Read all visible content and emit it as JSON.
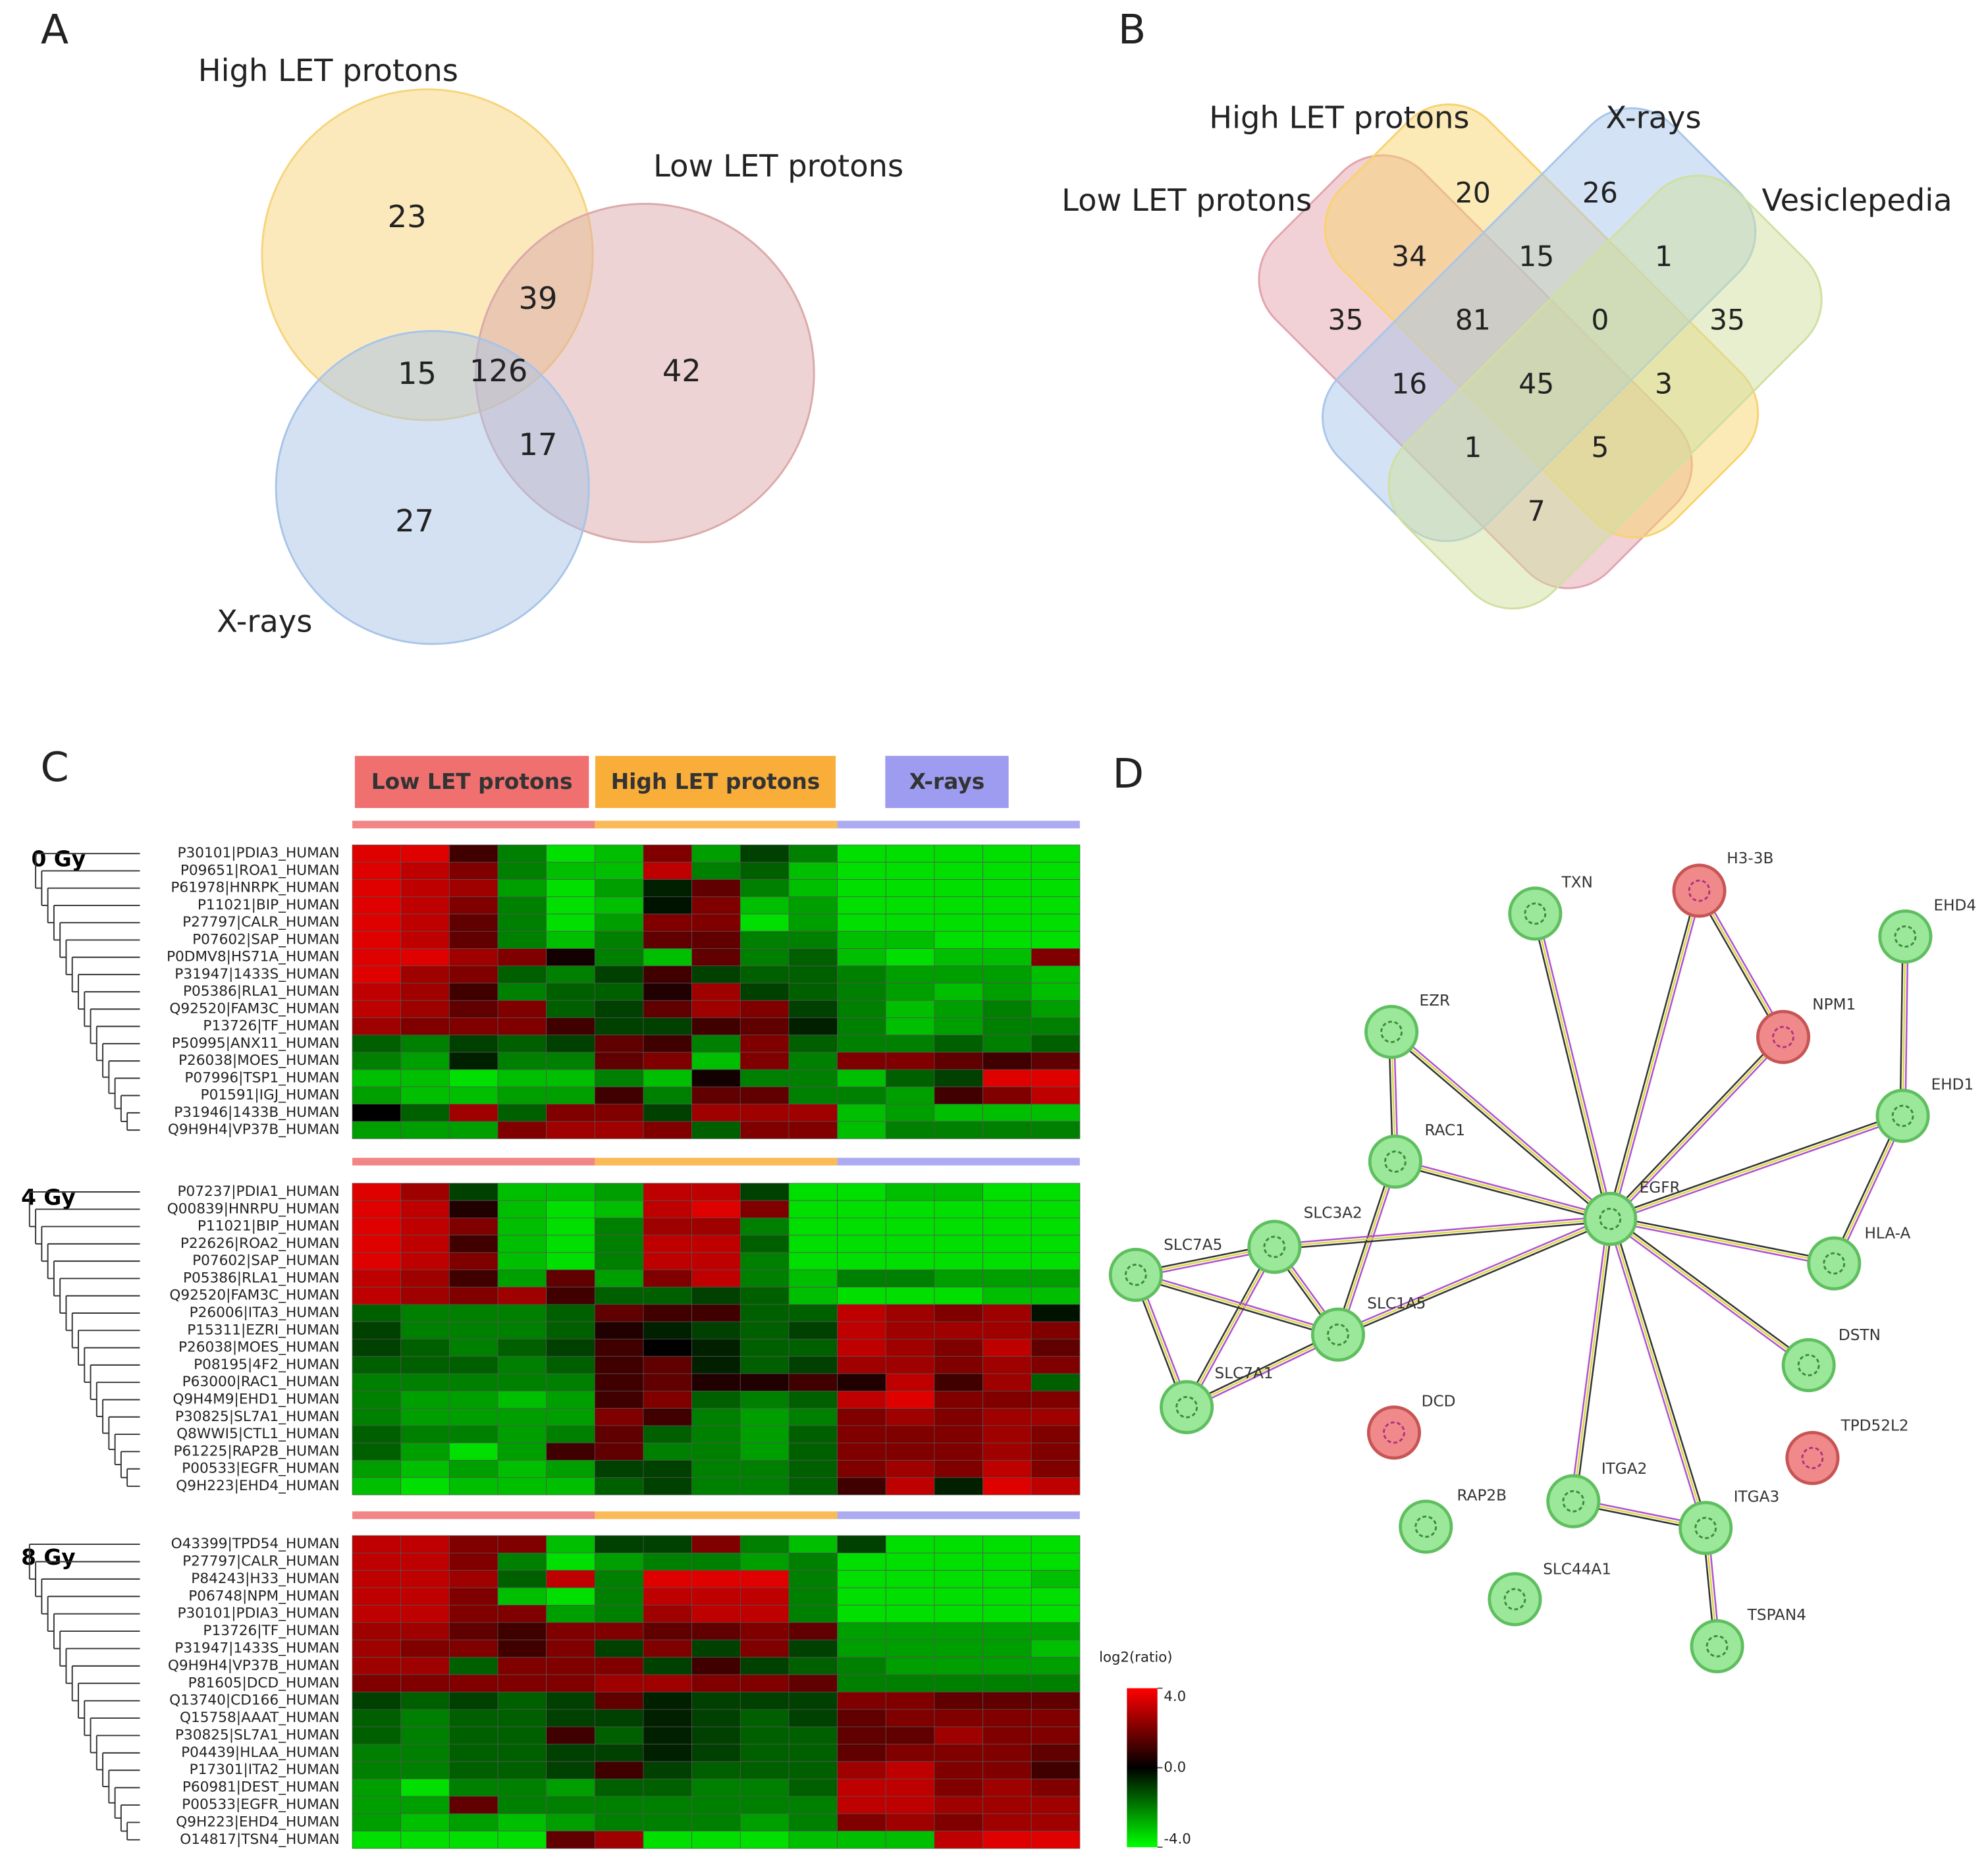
{
  "panel_a": {
    "letter": "A",
    "sets": [
      {
        "name": "High LET protons",
        "color": "#f7d47a"
      },
      {
        "name": "Low LET protons",
        "color": "#dca8a8"
      },
      {
        "name": "X-rays",
        "color": "#a8c4e8"
      }
    ],
    "regions": [
      23,
      39,
      15,
      126,
      42,
      17,
      27
    ]
  },
  "panel_b": {
    "letter": "B",
    "sets": [
      {
        "name": "Low LET protons",
        "color": "#e3a3ad"
      },
      {
        "name": "High LET protons",
        "color": "#f8d36e"
      },
      {
        "name": "X-rays",
        "color": "#a8c6ea"
      },
      {
        "name": "Vesiclepedia",
        "color": "#cfe0a0"
      }
    ],
    "regions": [
      20,
      26,
      34,
      15,
      1,
      35,
      81,
      0,
      35,
      16,
      45,
      3,
      1,
      5,
      7
    ]
  },
  "panel_c": {
    "letter": "C",
    "groups": [
      {
        "name": "Low LET protons",
        "color": "#f07070"
      },
      {
        "name": "High LET protons",
        "color": "#f9ae3a"
      },
      {
        "name": "X-rays",
        "color": "#9d9cf0"
      }
    ],
    "blocks": [
      {
        "dose": "0 Gy",
        "rows": [
          "P30101|PDIA3_HUMAN",
          "P09651|ROA1_HUMAN",
          "P61978|HNRPK_HUMAN",
          "P11021|BIP_HUMAN",
          "P27797|CALR_HUMAN",
          "P07602|SAP_HUMAN",
          "P0DMV8|HS71A_HUMAN",
          "P31947|1433S_HUMAN",
          "P05386|RLA1_HUMAN",
          "Q92520|FAM3C_HUMAN",
          "P13726|TF_HUMAN",
          "P50995|ANX11_HUMAN",
          "P26038|MOES_HUMAN",
          "P07996|TSP1_HUMAN",
          "P01591|IGJ_HUMAN",
          "P31946|1433B_HUMAN",
          "Q9H9H4|VP37B_HUMAN"
        ],
        "values": [
          [
            3.5,
            3.5,
            1,
            -2,
            -3.5,
            -3,
            2,
            -2.5,
            -1,
            -2,
            -3.5,
            -3.5,
            -3.5,
            -3.5,
            -3.5
          ],
          [
            3.5,
            3,
            2,
            -2,
            -3,
            -3,
            3,
            -2,
            -1.5,
            -3,
            -3.5,
            -3.5,
            -3.5,
            -3.5,
            -3.5
          ],
          [
            3.5,
            3,
            2.5,
            -2.5,
            -3.5,
            -2.5,
            -0.5,
            1.5,
            -2,
            -3,
            -3.5,
            -3.5,
            -3.5,
            -3.5,
            -3.5
          ],
          [
            3.5,
            3,
            2,
            -2,
            -3.5,
            -3,
            -0.3,
            2,
            -3,
            -2.5,
            -3.5,
            -3.5,
            -3.5,
            -3.5,
            -3.5
          ],
          [
            3.5,
            3,
            1.5,
            -2,
            -3.5,
            -2.5,
            2,
            2,
            -3.5,
            -2.5,
            -3.5,
            -3.5,
            -3.5,
            -3.5,
            -3.5
          ],
          [
            3.5,
            3,
            1.5,
            -2,
            -3,
            -2,
            1.5,
            1.5,
            -2,
            -2,
            -3,
            -3,
            -3.5,
            -3.5,
            -3.5
          ],
          [
            3.5,
            3.5,
            2.5,
            2,
            0.3,
            -2,
            -3,
            1.5,
            -2,
            -1.5,
            -3,
            -3.5,
            -3,
            -3,
            2
          ],
          [
            3.5,
            2.5,
            2,
            -1.5,
            -2,
            -1,
            1,
            -1,
            -1.5,
            -1.5,
            -2,
            -2.5,
            -2.5,
            -2.5,
            -3
          ],
          [
            3,
            2.5,
            1,
            -2,
            -1.5,
            -1.5,
            0.5,
            2.5,
            -1,
            -1.5,
            -2,
            -2.5,
            -3,
            -2.5,
            -3
          ],
          [
            3,
            2.5,
            1.5,
            2,
            -1.5,
            -1,
            1.5,
            2.5,
            2,
            -1,
            -2,
            -3,
            -2.5,
            -2,
            -2.5
          ],
          [
            2.5,
            2,
            2,
            2,
            1,
            -1,
            -1,
            1,
            1.5,
            -0.5,
            -2,
            -3,
            -2.5,
            -2,
            -2
          ],
          [
            -1.5,
            -2,
            -1,
            -1.5,
            -1,
            1.5,
            1,
            -2,
            2,
            -1.5,
            -2,
            -2,
            -1.5,
            -2,
            -1.5
          ],
          [
            -2,
            -2.5,
            -0.5,
            -2,
            -2,
            1.5,
            2,
            -3,
            2,
            -2,
            2,
            2,
            1.5,
            1,
            1.5
          ],
          [
            -3,
            -3,
            -3.5,
            -3,
            -3,
            -2,
            -3,
            0.3,
            -2,
            -2,
            -3,
            -1.5,
            -1,
            3.5,
            3.5
          ],
          [
            -2.5,
            -3,
            -3,
            -2.5,
            -2.5,
            1,
            -2,
            1.5,
            1.5,
            -2,
            -2,
            -2.5,
            1,
            2,
            3
          ],
          [
            0,
            -1.5,
            2.5,
            -1.5,
            2,
            2,
            -1,
            2.5,
            2.5,
            2.5,
            -3,
            -2.5,
            -3,
            -3,
            -3
          ],
          [
            -2.5,
            -2.5,
            -2.5,
            2,
            2.5,
            2.5,
            2,
            -1.5,
            2,
            2,
            -3,
            -2,
            -2,
            -2,
            -2
          ]
        ]
      },
      {
        "dose": "4 Gy",
        "rows": [
          "P07237|PDIA1_HUMAN",
          "Q00839|HNRPU_HUMAN",
          "P11021|BIP_HUMAN",
          "P22626|ROA2_HUMAN",
          "P07602|SAP_HUMAN",
          "P05386|RLA1_HUMAN",
          "Q92520|FAM3C_HUMAN",
          "P26006|ITA3_HUMAN",
          "P15311|EZRI_HUMAN",
          "P26038|MOES_HUMAN",
          "P08195|4F2_HUMAN",
          "P63000|RAC1_HUMAN",
          "Q9H4M9|EHD1_HUMAN",
          "P30825|SL7A1_HUMAN",
          "Q8WWI5|CTL1_HUMAN",
          "P61225|RAP2B_HUMAN",
          "P00533|EGFR_HUMAN",
          "Q9H223|EHD4_HUMAN"
        ],
        "values": [
          [
            3.5,
            2.5,
            -1,
            -3,
            -3,
            -2.5,
            3,
            3,
            -1,
            -3.5,
            -3.5,
            -3,
            -3,
            -3.5,
            -3.5
          ],
          [
            3.5,
            3,
            0.5,
            -3,
            -3.5,
            -3,
            3,
            3.5,
            2,
            -3.5,
            -3.5,
            -3.5,
            -3.5,
            -3.5,
            -3.5
          ],
          [
            3.5,
            3,
            2,
            -3,
            -3.5,
            -2,
            2.5,
            2.5,
            -2,
            -3.5,
            -3.5,
            -3.5,
            -3.5,
            -3.5,
            -3.5
          ],
          [
            3.5,
            3,
            1,
            -3,
            -3.5,
            -2,
            3,
            3,
            -1.5,
            -3.5,
            -3.5,
            -3.5,
            -3.5,
            -3.5,
            -3.5
          ],
          [
            3.5,
            3,
            2,
            -3,
            -3.5,
            -2,
            3,
            3,
            -2,
            -3.5,
            -3.5,
            -3.5,
            -3.5,
            -3.5,
            -3.5
          ],
          [
            3,
            2.5,
            1,
            -2.5,
            1.5,
            -2.5,
            2,
            3,
            -2,
            -3,
            -2,
            -2,
            -2.5,
            -2.5,
            -2.5
          ],
          [
            3,
            2.5,
            2,
            2.5,
            1,
            -1.5,
            -1.5,
            -1,
            -1.5,
            -3,
            -3.5,
            -3.5,
            -3.5,
            -3,
            -3
          ],
          [
            -1.5,
            -2,
            -2,
            -2,
            -1.5,
            1.5,
            1,
            1,
            -1.5,
            -1.5,
            3,
            2.5,
            2,
            2.5,
            -0.3
          ],
          [
            -1,
            -2,
            -2,
            -2,
            -1.5,
            0.5,
            -0.5,
            -1,
            -1.5,
            -1,
            3,
            2.5,
            2.5,
            2.5,
            2
          ],
          [
            -1,
            -1.5,
            -2,
            -1.5,
            -1,
            1,
            0,
            -0.5,
            -1.5,
            -1.5,
            3,
            2.5,
            2,
            3,
            1.5
          ],
          [
            -1.5,
            -1.5,
            -1.5,
            -2,
            -1.5,
            1,
            1.5,
            -0.5,
            -1.5,
            -1,
            2.5,
            2.5,
            2,
            2.5,
            2
          ],
          [
            -2,
            -2,
            -2,
            -2,
            -2,
            1,
            1.5,
            0.5,
            0.5,
            1,
            0.5,
            3,
            1,
            2.5,
            -1.5
          ],
          [
            -2,
            -2.5,
            -2.5,
            -3,
            -2.5,
            1,
            2,
            -1.5,
            -2,
            -1.5,
            3,
            3.5,
            2,
            2,
            2
          ],
          [
            -2,
            -2.5,
            -2.5,
            -2.5,
            -2.5,
            2,
            1,
            -2,
            -2.5,
            -2,
            2,
            2.5,
            2,
            2.5,
            2.5
          ],
          [
            -1.5,
            -2,
            -2,
            -2.5,
            -2,
            1.5,
            -1.5,
            -2,
            -2.5,
            -1.5,
            2,
            2,
            2,
            2.5,
            2
          ],
          [
            -1.5,
            -2.5,
            -3.5,
            -2.5,
            1,
            1.5,
            -2,
            -2,
            -2.5,
            -1.5,
            2,
            2,
            2,
            2.5,
            2
          ],
          [
            -2.5,
            -3,
            -2.5,
            -3,
            -2.5,
            -1,
            -1,
            -2,
            -2,
            -1.5,
            2,
            2.5,
            2,
            3,
            2
          ],
          [
            -3,
            -3.5,
            -3,
            -3,
            -3,
            -1.5,
            -1,
            -2,
            -2,
            -1.5,
            1,
            3,
            -0.5,
            3.5,
            3
          ]
        ]
      },
      {
        "dose": "8 Gy",
        "rows": [
          "O43399|TPD54_HUMAN",
          "P27797|CALR_HUMAN",
          "P84243|H33_HUMAN",
          "P06748|NPM_HUMAN",
          "P30101|PDIA3_HUMAN",
          "P13726|TF_HUMAN",
          "P31947|1433S_HUMAN",
          "Q9H9H4|VP37B_HUMAN",
          "P81605|DCD_HUMAN",
          "Q13740|CD166_HUMAN",
          "Q15758|AAAT_HUMAN",
          "P30825|SL7A1_HUMAN",
          "P04439|HLAA_HUMAN",
          "P17301|ITA2_HUMAN",
          "P60981|DEST_HUMAN",
          "P00533|EGFR_HUMAN",
          "Q9H223|EHD4_HUMAN",
          "O14817|TSN4_HUMAN"
        ],
        "values": [
          [
            3,
            3,
            2,
            2,
            -3,
            -1,
            -1,
            2,
            -2,
            -3,
            -1,
            -3.5,
            -3.5,
            -3.5,
            -3.5
          ],
          [
            3,
            3,
            2,
            -2,
            -3.5,
            -2.5,
            -2,
            -2,
            -2.5,
            -2,
            -3.5,
            -3.5,
            -3.5,
            -3.5,
            -3.5
          ],
          [
            3,
            3,
            2.5,
            -1.5,
            3,
            -2,
            3.5,
            3.5,
            3.5,
            -2,
            -3.5,
            -3.5,
            -3.5,
            -3.5,
            -3
          ],
          [
            3,
            3,
            2,
            -3,
            -3.5,
            -2,
            3,
            3,
            3,
            -2,
            -3.5,
            -3.5,
            -3.5,
            -3.5,
            -3.5
          ],
          [
            3,
            3,
            2,
            2,
            -2.5,
            -2,
            2.5,
            3,
            3,
            -2,
            -3.5,
            -3.5,
            -3.5,
            -3.5,
            -3.5
          ],
          [
            2.5,
            2.5,
            1.5,
            1,
            2,
            2,
            1.5,
            1.5,
            2,
            1.5,
            -2.5,
            -2.5,
            -2.5,
            -2.5,
            -2.5
          ],
          [
            2.5,
            2,
            2,
            1,
            2,
            -1,
            2,
            -1,
            2,
            -1,
            -2.5,
            -2.5,
            -2.5,
            -2.5,
            -3
          ],
          [
            2.5,
            2.5,
            -1.5,
            2,
            2,
            2,
            -1,
            1,
            -1,
            -1.5,
            -2,
            -2.5,
            -2.5,
            -2.5,
            -2.5
          ],
          [
            2,
            2,
            2,
            2,
            2,
            2.5,
            2.5,
            2,
            2,
            1.5,
            -2,
            -2,
            -2,
            -2,
            -2
          ],
          [
            -1,
            -1.5,
            -1,
            -1.5,
            -1,
            1.5,
            -0.5,
            -1,
            -1,
            -1,
            2,
            2,
            1.5,
            1.5,
            1.5
          ],
          [
            -1.5,
            -2,
            -1.5,
            -1.5,
            -1,
            -1,
            -0.5,
            -1,
            -1.5,
            -1,
            1.5,
            2,
            2,
            2,
            2
          ],
          [
            -1.5,
            -2,
            -1.5,
            -1.5,
            1,
            -1.5,
            -0.5,
            -1,
            -1.5,
            -1.5,
            1.5,
            1.5,
            2.5,
            2,
            2
          ],
          [
            -2,
            -2,
            -1.5,
            -1.5,
            -1,
            -1,
            -0.5,
            -1,
            -1.5,
            -1.5,
            1.5,
            2,
            2,
            2,
            1.5
          ],
          [
            -2,
            -2,
            -1.5,
            -1.5,
            -1,
            1,
            -1,
            -1.5,
            -1.5,
            -1.5,
            2.5,
            3,
            2,
            2,
            1
          ],
          [
            -2.5,
            -3.5,
            -2,
            -2,
            -2.5,
            -1.5,
            -1.5,
            -2,
            -2,
            -1.5,
            3,
            3,
            2,
            2.5,
            2
          ],
          [
            -2.5,
            -2.5,
            1.5,
            -2,
            -2,
            -2,
            -2,
            -2,
            -2,
            -2,
            3,
            3,
            2.5,
            2.5,
            2.5
          ],
          [
            -2.5,
            -3,
            -2.5,
            -3,
            -2.5,
            -2,
            -2,
            -2,
            -2.5,
            -2,
            2,
            2.5,
            2,
            2.5,
            2.5
          ],
          [
            -3.5,
            -3.5,
            -3.5,
            -3.5,
            1.5,
            2.5,
            -3.5,
            -3.5,
            -3.5,
            -3,
            -3,
            -3,
            3,
            3.5,
            3.5
          ]
        ]
      }
    ],
    "legend": {
      "title": "log2(ratio)",
      "ticks": [
        {
          "value": 4,
          "label": "4.0"
        },
        {
          "value": 0,
          "label": "0.0"
        },
        {
          "value": -4,
          "label": "-4.0"
        }
      ]
    }
  },
  "panel_d": {
    "letter": "D",
    "nodes": [
      {
        "label": "TXN",
        "color": "#9be89b"
      },
      {
        "label": "H3-3B",
        "color": "#f08a8a"
      },
      {
        "label": "EHD4",
        "color": "#9be89b"
      },
      {
        "label": "EZR",
        "color": "#9be89b"
      },
      {
        "label": "NPM1",
        "color": "#f08a8a"
      },
      {
        "label": "EHD1",
        "color": "#9be89b"
      },
      {
        "label": "RAC1",
        "color": "#9be89b"
      },
      {
        "label": "EGFR",
        "color": "#9be89b"
      },
      {
        "label": "SLC3A2",
        "color": "#9be89b"
      },
      {
        "label": "SLC7A5",
        "color": "#9be89b"
      },
      {
        "label": "HLA-A",
        "color": "#9be89b"
      },
      {
        "label": "SLC1A5",
        "color": "#9be89b"
      },
      {
        "label": "DSTN",
        "color": "#9be89b"
      },
      {
        "label": "SLC7A1",
        "color": "#9be89b"
      },
      {
        "label": "DCD",
        "color": "#f08a8a"
      },
      {
        "label": "TPD52L2",
        "color": "#f08a8a"
      },
      {
        "label": "ITGA2",
        "color": "#9be89b"
      },
      {
        "label": "RAP2B",
        "color": "#9be89b"
      },
      {
        "label": "ITGA3",
        "color": "#9be89b"
      },
      {
        "label": "SLC44A1",
        "color": "#9be89b"
      },
      {
        "label": "TSPAN4",
        "color": "#9be89b"
      }
    ]
  }
}
